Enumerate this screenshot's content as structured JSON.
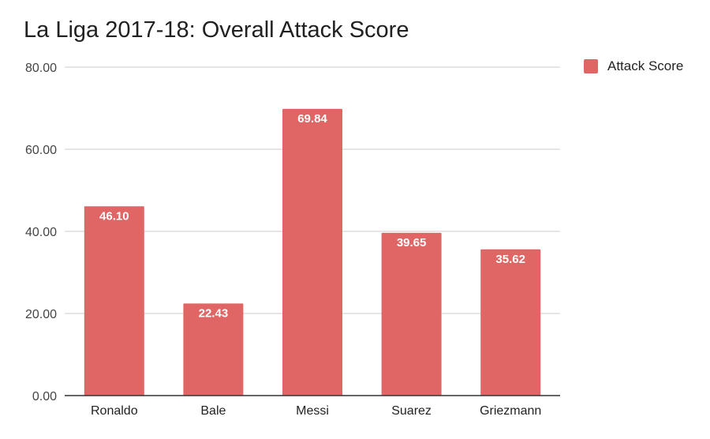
{
  "chart_data": {
    "type": "bar",
    "title": "La Liga 2017-18: Overall Attack Score",
    "categories": [
      "Ronaldo",
      "Bale",
      "Messi",
      "Suarez",
      "Griezmann"
    ],
    "series": [
      {
        "name": "Attack Score",
        "values": [
          46.1,
          22.43,
          69.84,
          39.65,
          35.62
        ]
      }
    ],
    "value_labels": [
      "46.10",
      "22.43",
      "69.84",
      "39.65",
      "35.62"
    ],
    "y_ticks": [
      "0.00",
      "20.00",
      "40.00",
      "60.00",
      "80.00"
    ],
    "y_tick_values": [
      0,
      20,
      40,
      60,
      80
    ],
    "ylim": [
      0,
      80
    ],
    "grid": true,
    "legend_position": "top-right",
    "colors": {
      "bar": "#e06666",
      "grid": "#cccccc",
      "axis": "#333333",
      "text": "#444444"
    }
  }
}
